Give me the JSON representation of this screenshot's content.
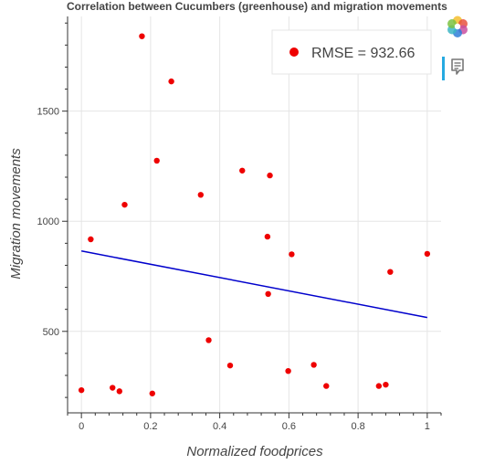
{
  "chart_data": {
    "type": "scatter",
    "title": "Correlation between Cucumbers (greenhouse) and migration movements",
    "xlabel": "Normalized foodprices",
    "ylabel": "Migration movements",
    "xlim": [
      -0.04,
      1.04
    ],
    "ylim": [
      130,
      1930
    ],
    "xticks": [
      0,
      0.2,
      0.4,
      0.6,
      0.8,
      1
    ],
    "xtick_labels": [
      "0",
      "0.2",
      "0.4",
      "0.6",
      "0.8",
      "1"
    ],
    "yticks": [
      500,
      1000,
      1500
    ],
    "ytick_labels": [
      "500",
      "1000",
      "1500"
    ],
    "grid": true,
    "legend": {
      "position": "top-right",
      "label": "RMSE = 932.66"
    },
    "colors": {
      "points": "#ee0000",
      "line": "#0000cc"
    },
    "points": [
      {
        "x": 0.0,
        "y": 233
      },
      {
        "x": 0.027,
        "y": 918
      },
      {
        "x": 0.09,
        "y": 244
      },
      {
        "x": 0.11,
        "y": 228
      },
      {
        "x": 0.125,
        "y": 1075
      },
      {
        "x": 0.175,
        "y": 1840
      },
      {
        "x": 0.205,
        "y": 218
      },
      {
        "x": 0.218,
        "y": 1275
      },
      {
        "x": 0.26,
        "y": 1635
      },
      {
        "x": 0.345,
        "y": 1120
      },
      {
        "x": 0.368,
        "y": 460
      },
      {
        "x": 0.43,
        "y": 345
      },
      {
        "x": 0.465,
        "y": 1230
      },
      {
        "x": 0.538,
        "y": 930
      },
      {
        "x": 0.54,
        "y": 670
      },
      {
        "x": 0.545,
        "y": 1208
      },
      {
        "x": 0.598,
        "y": 320
      },
      {
        "x": 0.608,
        "y": 850
      },
      {
        "x": 0.672,
        "y": 348
      },
      {
        "x": 0.708,
        "y": 252
      },
      {
        "x": 0.86,
        "y": 252
      },
      {
        "x": 0.88,
        "y": 258
      },
      {
        "x": 0.893,
        "y": 770
      },
      {
        "x": 1.0,
        "y": 852
      }
    ],
    "fit_line": {
      "x": [
        0,
        1
      ],
      "y": [
        865,
        563
      ]
    }
  },
  "toolbar": {
    "icons": [
      "bokeh-logo-icon",
      "hover-tool-icon"
    ]
  }
}
